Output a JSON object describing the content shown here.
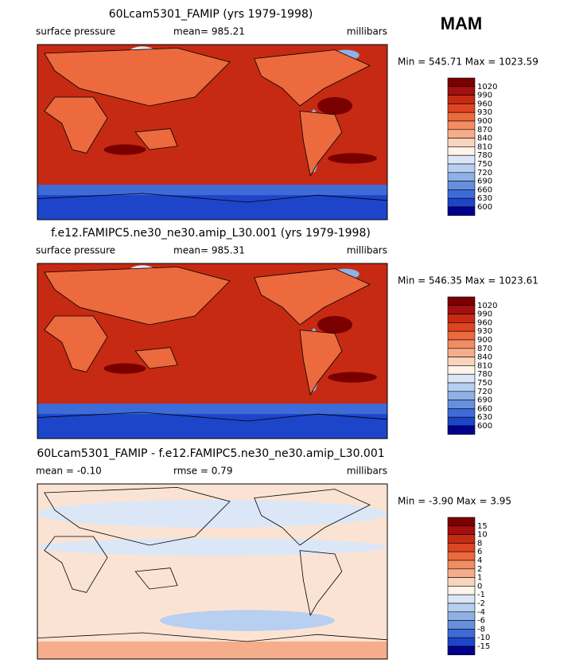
{
  "season": "MAM",
  "palette": [
    "#7a0000",
    "#a50f0f",
    "#c62a12",
    "#df4420",
    "#ec6a3e",
    "#f28c63",
    "#f6ad8c",
    "#fbd4bd",
    "#fff3ea",
    "#dbe7f7",
    "#b7cff0",
    "#8fb1e6",
    "#6690de",
    "#3d6bd8",
    "#1d45c9",
    "#00008c"
  ],
  "panels": [
    {
      "title": "60Lcam5301_FAMIP (yrs 1979-1998)",
      "left": "surface pressure",
      "center": "mean= 985.21",
      "right": "millibars",
      "minmax": "Min = 545.71 Max = 1023.59",
      "levels": [
        "1020",
        "990",
        "960",
        "930",
        "900",
        "870",
        "840",
        "810",
        "780",
        "750",
        "720",
        "690",
        "660",
        "630",
        "600"
      ]
    },
    {
      "title": "f.e12.FAMIPC5.ne30_ne30.amip_L30.001 (yrs 1979-1998)",
      "left": "surface pressure",
      "center": "mean= 985.31",
      "right": "millibars",
      "minmax": "Min = 546.35 Max = 1023.61",
      "levels": [
        "1020",
        "990",
        "960",
        "930",
        "900",
        "870",
        "840",
        "810",
        "780",
        "750",
        "720",
        "690",
        "660",
        "630",
        "600"
      ]
    },
    {
      "title": "60Lcam5301_FAMIP - f.e12.FAMIPC5.ne30_ne30.amip_L30.001",
      "left": "mean =  -0.10",
      "center": "rmse =    0.79",
      "right": "millibars",
      "minmax": "Min =  -3.90 Max =   3.95",
      "levels": [
        "15",
        "10",
        "8",
        "6",
        "4",
        "2",
        "1",
        "0",
        "-1",
        "-2",
        "-4",
        "-6",
        "-8",
        "-10",
        "-15"
      ]
    }
  ]
}
